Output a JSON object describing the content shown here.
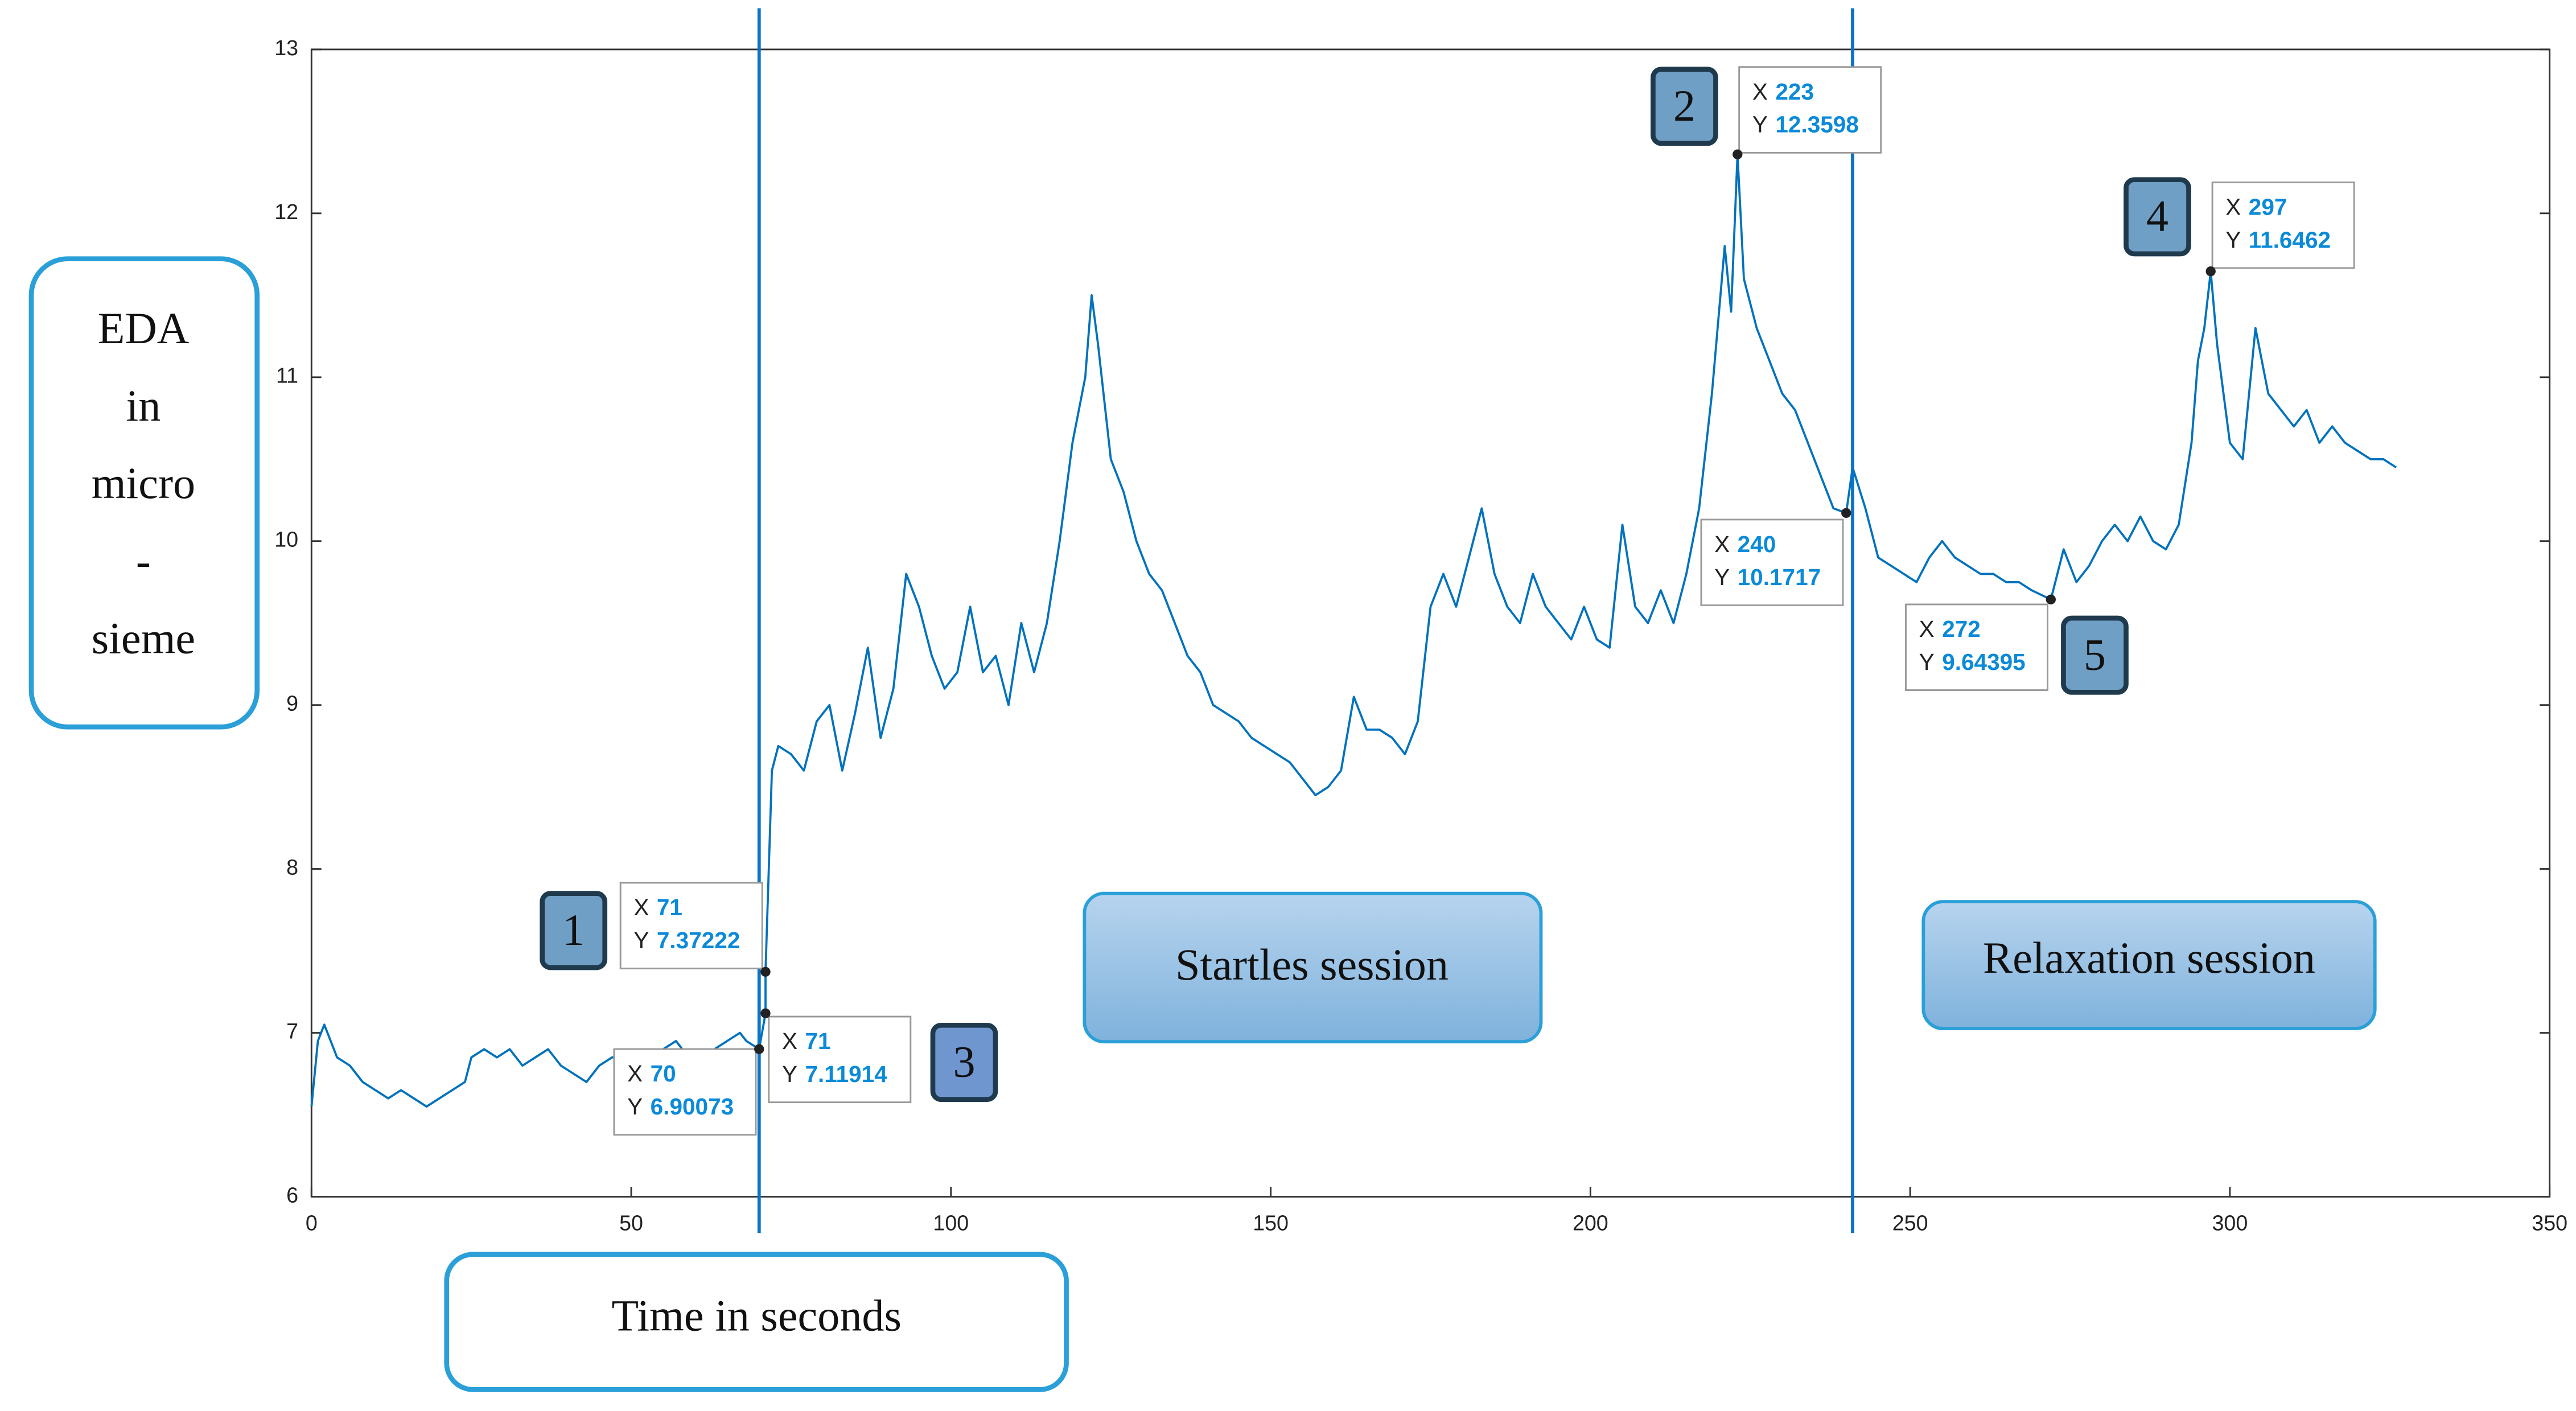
{
  "chart_data": {
    "type": "line",
    "y_label_lines": [
      "EDA",
      "in",
      "micro",
      "-",
      "sieme"
    ],
    "x_label": "Time in seconds",
    "xlim": [
      0,
      350
    ],
    "xticks": [
      0,
      50,
      100,
      150,
      200,
      250,
      300,
      350
    ],
    "ylim": [
      6,
      13
    ],
    "yticks": [
      6,
      7,
      8,
      9,
      10,
      11,
      12,
      13
    ],
    "grid": false,
    "x": [
      0,
      1,
      2,
      3,
      4,
      6,
      8,
      10,
      12,
      14,
      16,
      18,
      20,
      22,
      24,
      25,
      27,
      29,
      31,
      33,
      35,
      37,
      39,
      41,
      43,
      45,
      47,
      49,
      51,
      53,
      55,
      57,
      59,
      61,
      63,
      65,
      67,
      68,
      70,
      71,
      71,
      72,
      73,
      75,
      77,
      79,
      81,
      83,
      85,
      87,
      89,
      91,
      93,
      95,
      97,
      99,
      101,
      103,
      105,
      107,
      109,
      111,
      113,
      115,
      117,
      119,
      121,
      122,
      123,
      125,
      127,
      129,
      131,
      133,
      135,
      137,
      139,
      141,
      143,
      145,
      147,
      149,
      151,
      153,
      155,
      157,
      159,
      161,
      163,
      165,
      167,
      169,
      171,
      173,
      175,
      177,
      179,
      181,
      183,
      185,
      187,
      189,
      191,
      193,
      195,
      197,
      199,
      201,
      203,
      205,
      207,
      209,
      211,
      213,
      215,
      217,
      219,
      221,
      222,
      223,
      224,
      226,
      228,
      230,
      232,
      234,
      236,
      238,
      240,
      241,
      243,
      245,
      247,
      249,
      251,
      253,
      255,
      257,
      259,
      261,
      263,
      265,
      267,
      269,
      272,
      274,
      276,
      278,
      280,
      282,
      284,
      286,
      288,
      290,
      292,
      294,
      295,
      296,
      297,
      298,
      300,
      302,
      304,
      306,
      308,
      310,
      312,
      314,
      316,
      318,
      320,
      322,
      324,
      326
    ],
    "series": [
      {
        "color": "#0072bd",
        "values": [
          6.55,
          6.95,
          7.05,
          6.95,
          6.85,
          6.8,
          6.7,
          6.65,
          6.6,
          6.65,
          6.6,
          6.55,
          6.6,
          6.65,
          6.7,
          6.85,
          6.9,
          6.85,
          6.9,
          6.8,
          6.85,
          6.9,
          6.8,
          6.75,
          6.7,
          6.8,
          6.85,
          6.85,
          6.8,
          6.75,
          6.9,
          6.95,
          6.85,
          6.85,
          6.9,
          6.95,
          7.0,
          6.95,
          6.90073,
          7.11914,
          7.37222,
          8.6,
          8.75,
          8.7,
          8.6,
          8.9,
          9.0,
          8.6,
          8.95,
          9.35,
          8.8,
          9.1,
          9.8,
          9.6,
          9.3,
          9.1,
          9.2,
          9.6,
          9.2,
          9.3,
          9.0,
          9.5,
          9.2,
          9.5,
          10.0,
          10.6,
          11.0,
          11.5,
          11.2,
          10.5,
          10.3,
          10.0,
          9.8,
          9.7,
          9.5,
          9.3,
          9.2,
          9.0,
          8.95,
          8.9,
          8.8,
          8.75,
          8.7,
          8.65,
          8.55,
          8.45,
          8.5,
          8.6,
          9.05,
          8.85,
          8.85,
          8.8,
          8.7,
          8.9,
          9.6,
          9.8,
          9.6,
          9.9,
          10.2,
          9.8,
          9.6,
          9.5,
          9.8,
          9.6,
          9.5,
          9.4,
          9.6,
          9.4,
          9.35,
          10.1,
          9.6,
          9.5,
          9.7,
          9.5,
          9.8,
          10.2,
          10.9,
          11.8,
          11.4,
          12.3598,
          11.6,
          11.3,
          11.1,
          10.9,
          10.8,
          10.6,
          10.4,
          10.2,
          10.1717,
          10.45,
          10.2,
          9.9,
          9.85,
          9.8,
          9.75,
          9.9,
          10.0,
          9.9,
          9.85,
          9.8,
          9.8,
          9.75,
          9.75,
          9.7,
          9.64395,
          9.95,
          9.75,
          9.85,
          10.0,
          10.1,
          10.0,
          10.15,
          10.0,
          9.95,
          10.1,
          10.6,
          11.1,
          11.3,
          11.6462,
          11.2,
          10.6,
          10.5,
          11.3,
          10.9,
          10.8,
          10.7,
          10.8,
          10.6,
          10.7,
          10.6,
          10.55,
          10.5,
          10.5,
          10.45
        ]
      }
    ],
    "vlines": [
      70,
      241
    ],
    "datatip_labels": {
      "x": "X",
      "y": "Y"
    },
    "datatips": [
      {
        "x": 71,
        "y": 7.37222
      },
      {
        "x": 70,
        "y": 6.90073
      },
      {
        "x": 71,
        "y": 7.11914
      },
      {
        "x": 223,
        "y": 12.3598
      },
      {
        "x": 240,
        "y": 10.1717
      },
      {
        "x": 272,
        "y": 9.64395
      },
      {
        "x": 297,
        "y": 11.6462
      }
    ],
    "badges": [
      "1",
      "2",
      "3",
      "4",
      "5"
    ],
    "sessions": [
      "Startles session",
      "Relaxation session"
    ]
  }
}
